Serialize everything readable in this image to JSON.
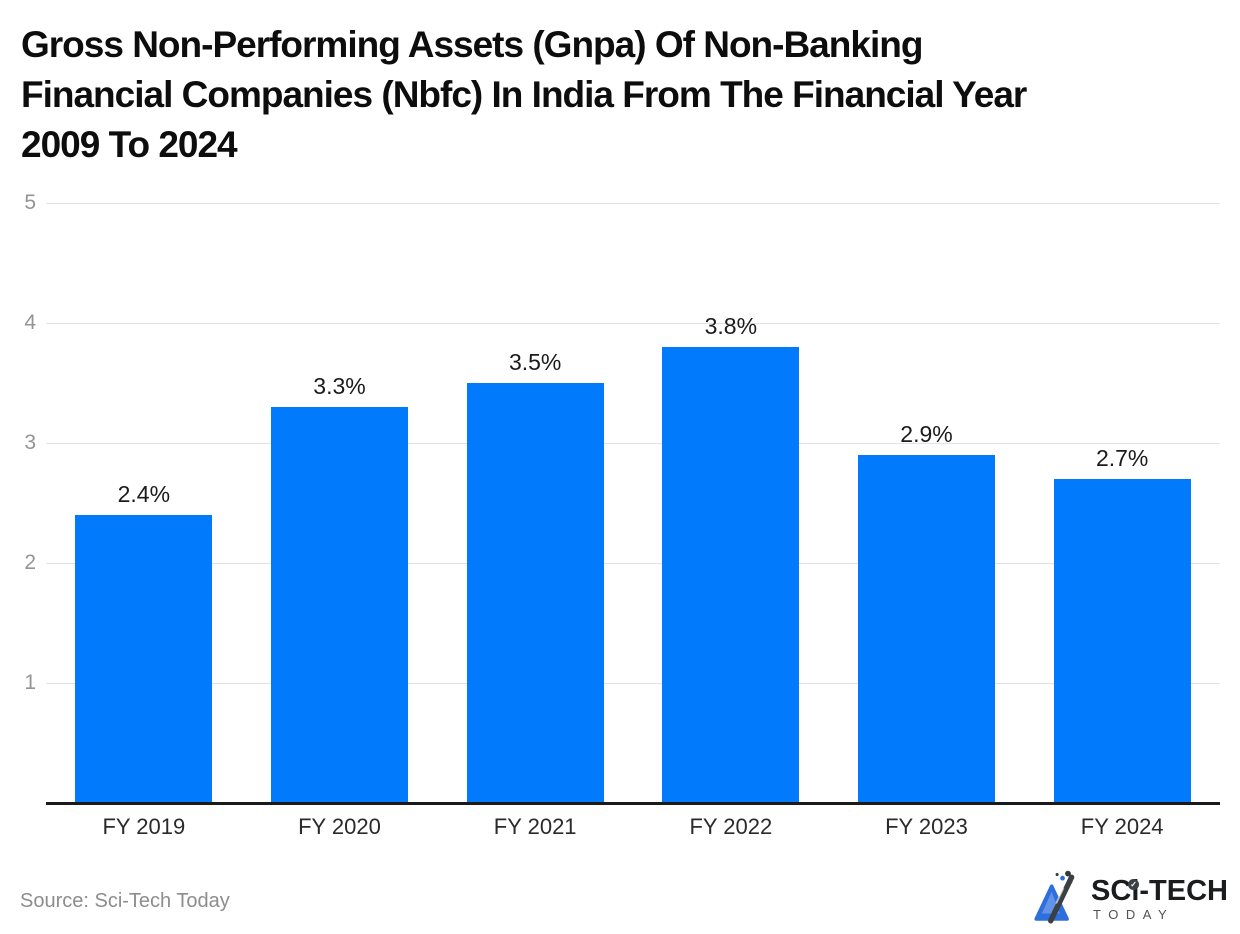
{
  "page": {
    "title": "Gross Non-Performing Assets (Gnpa) Of Non-Banking\nFinancial Companies (Nbfc) In India From The Financial Year\n2009 To 2024",
    "source_label": "Source: Sci-Tech Today"
  },
  "logo": {
    "main_text": "SCi-TECH",
    "sub_text": "TODAY",
    "i_dot_glyph": "✓"
  },
  "chart_data": {
    "type": "bar",
    "title": "Gross Non-Performing Assets (Gnpa) Of Non-Banking Financial Companies (Nbfc) In India From The Financial Year 2009 To 2024",
    "categories": [
      "FY 2019",
      "FY 2020",
      "FY 2021",
      "FY 2022",
      "FY 2023",
      "FY 2024"
    ],
    "values": [
      2.4,
      3.3,
      3.5,
      3.8,
      2.9,
      2.7
    ],
    "value_labels": [
      "2.4%",
      "3.3%",
      "3.5%",
      "3.8%",
      "2.9%",
      "2.7%"
    ],
    "xlabel": "",
    "ylabel": "",
    "ylim": [
      0,
      5
    ],
    "yticks": [
      1,
      2,
      3,
      4,
      5
    ],
    "grid": true,
    "legend": "none",
    "bar_color": "#017bfc",
    "axis_color": "#1a1a1a",
    "gridline_color": "#e2e2e2",
    "tick_label_color": "#949494"
  }
}
